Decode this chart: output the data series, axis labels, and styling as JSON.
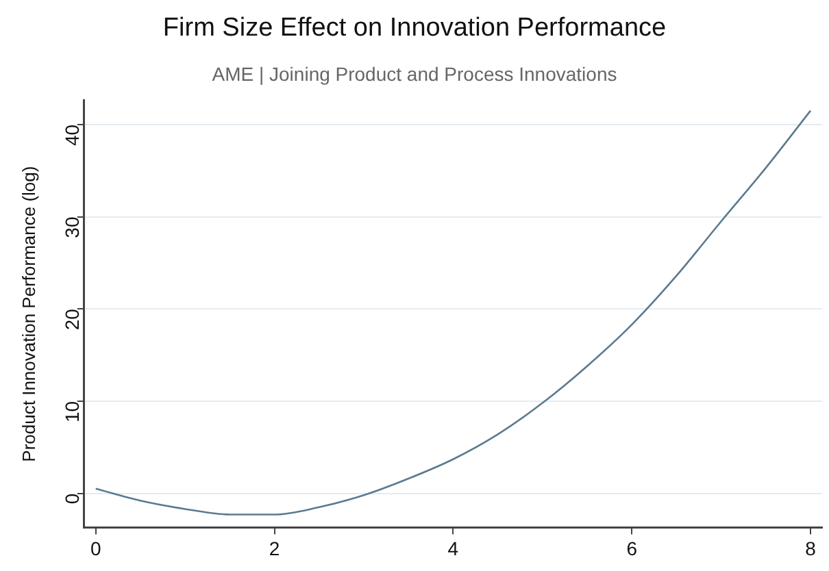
{
  "chart_data": {
    "type": "line",
    "title": "Firm Size Effect on Innovation Performance",
    "subtitle": "AME | Joining Product and Process Innovations",
    "ylabel": "Product Innovation Performance (log)",
    "x": [
      0,
      0.5,
      1,
      1.5,
      2,
      2.5,
      3,
      3.5,
      4,
      4.5,
      5,
      5.5,
      6,
      6.5,
      7,
      7.5,
      8
    ],
    "series": [
      {
        "color": "#5b7a8f",
        "values": [
          0.5,
          -0.8,
          -1.7,
          -2.3,
          -2.3,
          -1.5,
          -0.2,
          1.6,
          3.7,
          6.4,
          9.8,
          13.8,
          18.3,
          23.6,
          29.5,
          35.3,
          41.5
        ]
      }
    ],
    "xlim": [
      -0.13,
      8.13
    ],
    "xticks": [
      0,
      2,
      4,
      6,
      8
    ],
    "ylim": [
      -3.7,
      42.6
    ],
    "yticks": [
      0,
      10,
      20,
      30,
      40
    ],
    "grid": "y",
    "legend": false,
    "marker": "none",
    "line_style": "solid"
  }
}
